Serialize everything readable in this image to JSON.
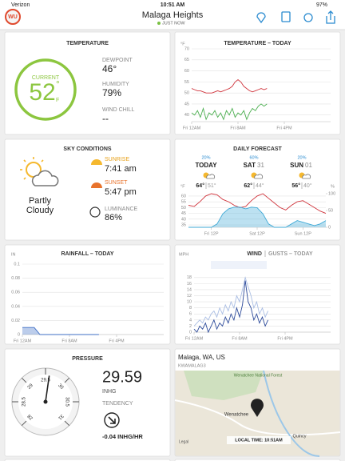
{
  "status_bar": {
    "carrier": "Verizon",
    "time": "10:51 AM",
    "battery": "97%"
  },
  "header": {
    "logo": "WU",
    "title": "Malaga Heights",
    "updated": "JUST NOW"
  },
  "temperature": {
    "title": "TEMPERATURE",
    "current_label": "CURRENT",
    "current": "52",
    "degree": "°",
    "unit": "F",
    "dewpoint_label": "DEWPOINT",
    "dewpoint": "46°",
    "humidity_label": "HUMIDITY",
    "humidity": "79%",
    "wind_chill_label": "WIND CHILL",
    "wind_chill": "--"
  },
  "temperature_today": {
    "type": "line",
    "title": "TEMPERATURE – TODAY",
    "unit": "°F",
    "ylim": [
      37,
      70
    ],
    "yticks": [
      40,
      45,
      50,
      55,
      60,
      65,
      70
    ],
    "xlim": [
      0,
      24
    ],
    "xticks": [
      {
        "value": 0,
        "label": "Fri 12AM"
      },
      {
        "value": 8,
        "label": "Fri 8AM"
      },
      {
        "value": 16,
        "label": "Fri 4PM"
      }
    ],
    "x": [
      0,
      0.5,
      1,
      1.5,
      2,
      2.5,
      3,
      3.5,
      4,
      4.5,
      5,
      5.5,
      6,
      6.5,
      7,
      7.5,
      8,
      8.5,
      9,
      9.5,
      10,
      10.5,
      11,
      11.5,
      12,
      12.5,
      13
    ],
    "series": [
      {
        "color": "#d0343c",
        "values": [
          52,
          51.5,
          51,
          51,
          50.5,
          50,
          50,
          50,
          50.5,
          51,
          50.5,
          51,
          51.5,
          52,
          53,
          55,
          56,
          55,
          53,
          52,
          51,
          50.5,
          51,
          51.5,
          52,
          51.5,
          52
        ]
      },
      {
        "color": "#4caf50",
        "values": [
          41,
          40,
          42,
          39,
          43,
          38,
          41,
          40,
          42,
          39,
          41,
          38,
          42,
          40,
          43,
          39,
          41,
          40,
          42,
          38,
          41,
          43,
          42,
          44,
          45,
          44,
          45
        ]
      }
    ]
  },
  "sky": {
    "title": "SKY CONDITIONS",
    "condition_line1": "Partly",
    "condition_line2": "Cloudy",
    "sunrise_label": "SUNRISE",
    "sunrise": "7:41 am",
    "sunset_label": "SUNSET",
    "sunset": "5:47 pm",
    "luminance_label": "LUMINANCE",
    "luminance": "86%"
  },
  "forecast": {
    "title": "DAILY FORECAST",
    "days": [
      {
        "precip": "20%",
        "day": "TODAY",
        "high": "64°",
        "low": "51°"
      },
      {
        "precip": "60%",
        "day": "SAT",
        "date": "31",
        "high": "62°",
        "low": "44°"
      },
      {
        "precip": "20%",
        "day": "SUN",
        "date": "01",
        "high": "56°",
        "low": "40°"
      }
    ],
    "chart": {
      "type": "line",
      "unit": "°F",
      "y2unit": "%",
      "ylim": [
        33,
        62
      ],
      "yticks": [
        35,
        40,
        45,
        50,
        55,
        60
      ],
      "y2lim": [
        0,
        100
      ],
      "y2ticks": [
        0,
        50,
        100
      ],
      "xlim": [
        0,
        72
      ],
      "xticks": [
        {
          "value": 12,
          "label": "Fri 12P"
        },
        {
          "value": 36,
          "label": "Sat 12P"
        },
        {
          "value": 60,
          "label": "Sun 12P"
        }
      ],
      "x": [
        0,
        3,
        6,
        9,
        12,
        15,
        18,
        21,
        24,
        27,
        30,
        33,
        36,
        39,
        42,
        45,
        48,
        51,
        54,
        57,
        60,
        63,
        66,
        69,
        72
      ],
      "series": [
        {
          "color": "#d0343c",
          "values": [
            52,
            51,
            55,
            60,
            62,
            61,
            57,
            55,
            52,
            50,
            51,
            56,
            60,
            62,
            58,
            54,
            50,
            48,
            52,
            55,
            56,
            53,
            50,
            47,
            45
          ]
        },
        {
          "color": "#3fa9d6",
          "axis": "y2",
          "area": true,
          "values": [
            0,
            0,
            0,
            0,
            0,
            10,
            40,
            55,
            60,
            60,
            55,
            60,
            58,
            40,
            10,
            0,
            0,
            0,
            10,
            20,
            15,
            10,
            5,
            10,
            20
          ]
        }
      ]
    }
  },
  "rainfall": {
    "type": "line",
    "title": "RAINFALL – TODAY",
    "unit": "IN",
    "ylim": [
      0,
      0.1
    ],
    "yticks": [
      0,
      0.02,
      0.04,
      0.06,
      0.08,
      0.1
    ],
    "xlim": [
      0,
      24
    ],
    "xticks": [
      {
        "value": 0,
        "label": "Fri 12AM"
      },
      {
        "value": 8,
        "label": "Fri 8AM"
      },
      {
        "value": 16,
        "label": "Fri 4PM"
      }
    ],
    "x": [
      0,
      1,
      2,
      3,
      4,
      5,
      6,
      7,
      8,
      9,
      10,
      11,
      12,
      13
    ],
    "series": [
      {
        "color": "#3f6fc6",
        "area": true,
        "values": [
          0.01,
          0.01,
          0.01,
          0,
          0,
          0,
          0,
          0,
          0,
          0,
          0,
          0,
          0,
          0
        ]
      }
    ]
  },
  "wind": {
    "type": "line",
    "unit": "MPH",
    "ylim": [
      0,
      19
    ],
    "yticks": [
      0,
      2,
      4,
      6,
      8,
      10,
      12,
      14,
      16,
      18
    ],
    "xlim": [
      0,
      24
    ],
    "xticks": [
      {
        "value": 0,
        "label": "Fri 12AM"
      },
      {
        "value": 8,
        "label": "Fri 8AM"
      },
      {
        "value": 16,
        "label": "Fri 4PM"
      }
    ],
    "x": [
      0,
      0.5,
      1,
      1.5,
      2,
      2.5,
      3,
      3.5,
      4,
      4.5,
      5,
      5.5,
      6,
      6.5,
      7,
      7.5,
      8,
      8.5,
      9,
      9.5,
      10,
      10.5,
      11,
      11.5,
      12,
      12.5,
      13
    ],
    "series": [
      {
        "name": "GUSTS – TODAY",
        "color": "#a9bde3",
        "values": [
          2,
          3,
          4,
          3,
          5,
          4,
          6,
          7,
          5,
          8,
          6,
          9,
          7,
          10,
          8,
          12,
          10,
          14,
          18,
          15,
          12,
          8,
          10,
          6,
          8,
          5,
          7
        ]
      },
      {
        "name": "WIND",
        "color": "#2c4a9a",
        "values": [
          1,
          0,
          2,
          1,
          3,
          0,
          2,
          4,
          1,
          3,
          2,
          5,
          3,
          6,
          4,
          8,
          5,
          9,
          17,
          10,
          8,
          4,
          6,
          3,
          5,
          2,
          4
        ]
      }
    ]
  },
  "pressure": {
    "title": "PRESSURE",
    "gauge": {
      "lim": [
        28,
        31
      ],
      "ticks": [
        28,
        28.5,
        29,
        29.5,
        30,
        30.5,
        31
      ],
      "value": 29.59
    },
    "unit": "INHG",
    "tendency_label": "TENDENCY",
    "tendency": "-0.04 INHG/HR"
  },
  "map": {
    "location": "Malaga, WA, US",
    "station": "KWAMALAG3",
    "forest": "Wenatchee National Forest",
    "city": "Wenatchee",
    "town": "Quincy",
    "legal": "Legal",
    "local_time": "LOCAL TIME: 10:51AM"
  }
}
